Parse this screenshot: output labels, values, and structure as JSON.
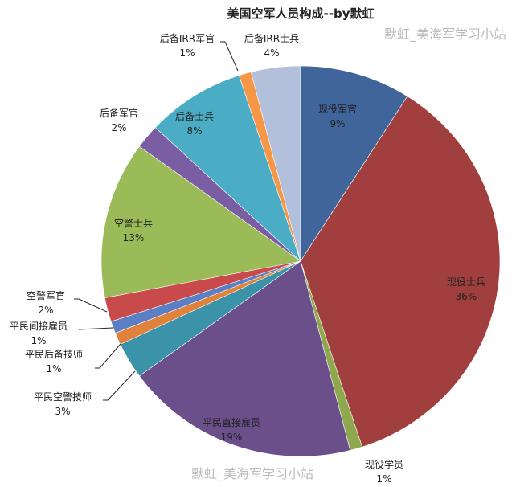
{
  "chart_data": {
    "type": "pie",
    "title": "美国空军人员构成--by默虹",
    "start": "12 o'clock, clockwise",
    "slices": [
      {
        "label": "现役军官",
        "value": 9,
        "pct": "9%",
        "color": "#40659a"
      },
      {
        "label": "现役士兵",
        "value": 36,
        "pct": "36%",
        "color": "#a03f3d"
      },
      {
        "label": "现役学员",
        "value": 1,
        "pct": "1%",
        "color": "#8fa84e"
      },
      {
        "label": "平民直接雇员",
        "value": 19,
        "pct": "19%",
        "color": "#6a4f8b"
      },
      {
        "label": "平民空警技师",
        "value": 3,
        "pct": "3%",
        "color": "#3a93a8"
      },
      {
        "label": "平民后备技师",
        "value": 1,
        "pct": "1%",
        "color": "#e0823c"
      },
      {
        "label": "平民间接雇员",
        "value": 1,
        "pct": "1%",
        "color": "#5b7fc4"
      },
      {
        "label": "空警军官",
        "value": 2,
        "pct": "2%",
        "color": "#c94a4a"
      },
      {
        "label": "空警士兵",
        "value": 13,
        "pct": "13%",
        "color": "#9bbb59"
      },
      {
        "label": "后备军官",
        "value": 2,
        "pct": "2%",
        "color": "#7b5da3"
      },
      {
        "label": "后备士兵",
        "value": 8,
        "pct": "8%",
        "color": "#4bacc6"
      },
      {
        "label": "后备IRR军官",
        "value": 1,
        "pct": "1%",
        "color": "#f79646"
      },
      {
        "label": "后备IRR士兵",
        "value": 4,
        "pct": "4%",
        "color": "#b3c0dc"
      }
    ],
    "legend": "none (data labels)"
  },
  "watermark": {
    "text1": "默虹_美海军学习小站",
    "text2": "默虹_美海军学习小站"
  }
}
